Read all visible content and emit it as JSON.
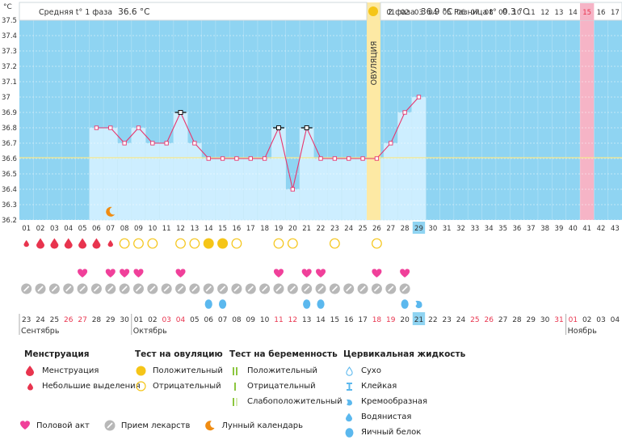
{
  "header": {
    "unit": "°C",
    "phase1_label": "Средняя t° 1 фаза",
    "phase1_value": "36.6 °C",
    "phase2_label": "2 фаза",
    "phase2_value": "36.9 °C",
    "diff_label": "Разница t°",
    "diff_value": "0.3 °C",
    "ovulation_label": "ОВУЛЯЦИЯ"
  },
  "chart_data": {
    "type": "line",
    "ylim": [
      36.2,
      37.5
    ],
    "y_ticks": [
      "36.2",
      "36.3",
      "36.4",
      "36.5",
      "36.6",
      "36.7",
      "36.8",
      "36.9",
      "37",
      "37.1",
      "37.2",
      "37.3",
      "37.4",
      "37.5"
    ],
    "coverline": 36.6,
    "cycle_days": [
      "01",
      "02",
      "03",
      "04",
      "05",
      "06",
      "07",
      "08",
      "09",
      "10",
      "11",
      "12",
      "13",
      "14",
      "15",
      "16",
      "17",
      "18",
      "19",
      "20",
      "21",
      "22",
      "23",
      "24",
      "25",
      "26",
      "27",
      "28",
      "29",
      "30",
      "31",
      "32",
      "33",
      "34",
      "35",
      "36",
      "37",
      "38",
      "39",
      "40",
      "41",
      "42",
      "43"
    ],
    "top_days": [
      "01",
      "02",
      "03",
      "04",
      "05",
      "06",
      "07",
      "08",
      "09",
      "10",
      "11",
      "12",
      "13",
      "14",
      "15",
      "16",
      "17"
    ],
    "top_highlight": "15",
    "ovulation_day": 26,
    "current_day": 29,
    "series": [
      {
        "days": [
          6,
          7,
          8,
          9,
          10,
          11,
          12,
          13,
          14,
          15,
          16,
          17,
          18,
          19,
          20,
          21,
          22,
          23,
          24,
          25,
          26,
          27,
          28,
          29
        ],
        "values": [
          36.8,
          36.8,
          36.7,
          36.8,
          36.7,
          36.7,
          36.9,
          36.7,
          36.6,
          36.6,
          36.6,
          36.6,
          36.6,
          36.8,
          36.4,
          36.8,
          36.6,
          36.6,
          36.6,
          36.6,
          36.6,
          36.7,
          36.9,
          37.0
        ]
      }
    ],
    "excluded_days": [
      12,
      19,
      21
    ]
  },
  "symptoms": {
    "menstruation": {
      "1": "small",
      "2": "heavy",
      "3": "heavy",
      "4": "heavy",
      "5": "heavy",
      "6": "heavy",
      "7": "small"
    },
    "ovulation_test": {
      "8": "neg",
      "9": "neg",
      "10": "neg",
      "12": "neg",
      "13": "neg",
      "14": "pos",
      "15": "pos",
      "16": "neg",
      "19": "neg",
      "20": "neg",
      "23": "neg",
      "26": "neg"
    },
    "intercourse": [
      5,
      7,
      8,
      9,
      12,
      19,
      21,
      22,
      26,
      28
    ],
    "medication_range": [
      1,
      28
    ],
    "mucus": {
      "14": "egg",
      "15": "egg",
      "21": "egg",
      "22": "egg",
      "28": "egg",
      "29": "creamy"
    },
    "moon_day": 7
  },
  "calendar": {
    "dates": [
      "23",
      "24",
      "25",
      "26",
      "27",
      "28",
      "29",
      "30",
      "01",
      "02",
      "03",
      "04",
      "05",
      "06",
      "07",
      "08",
      "09",
      "10",
      "11",
      "12",
      "13",
      "14",
      "15",
      "16",
      "17",
      "18",
      "19",
      "20",
      "21",
      "22",
      "23",
      "24",
      "25",
      "26",
      "27",
      "28",
      "29",
      "30",
      "31",
      "01",
      "02",
      "03",
      "04"
    ],
    "red_indices": [
      3,
      4,
      10,
      11,
      18,
      19,
      25,
      26,
      32,
      33,
      38,
      39
    ],
    "months": [
      {
        "label": "Сентябрь",
        "index": 0
      },
      {
        "label": "Октябрь",
        "index": 8
      },
      {
        "label": "Ноябрь",
        "index": 39
      }
    ]
  },
  "legend": {
    "menstruation": {
      "title": "Менструация",
      "items": [
        "Менструация",
        "Небольшие выделения"
      ]
    },
    "ovulation_test": {
      "title": "Тест на овуляцию",
      "items": [
        "Положительный",
        "Отрицательный"
      ]
    },
    "pregnancy_test": {
      "title": "Тест на беременность",
      "items": [
        "Положительный",
        "Отрицательный",
        "Слабоположительный"
      ]
    },
    "mucus": {
      "title": "Цервикальная жидкость",
      "items": [
        "Сухо",
        "Клейкая",
        "Кремообразная",
        "Водянистая",
        "Яичный белок"
      ]
    },
    "bottom": [
      "Половой акт",
      "Прием лекарств",
      "Лунный календарь"
    ]
  },
  "colors": {
    "plot_bg": "#8fd4f2",
    "measured_col": "#cdeeff",
    "ovulation": "#fde9a4",
    "highlight": "#f6b4c6",
    "line": "#e8366e",
    "coverline": "#f5e88c",
    "red": "#e8344e",
    "yellow": "#f5c518",
    "pink": "#f0409a",
    "gray": "#b8b8b8",
    "blue": "#5bb8ee",
    "orange": "#f08c12",
    "today": "#8fd4f2"
  }
}
